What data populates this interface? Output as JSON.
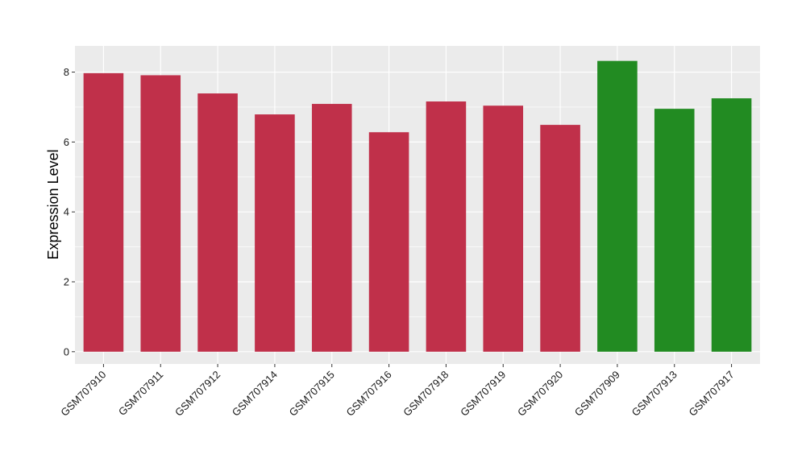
{
  "chart_data": {
    "type": "bar",
    "title": "",
    "xlabel": "",
    "ylabel": "Expression Level",
    "ylim": [
      -0.35,
      8.75
    ],
    "yticks": [
      0,
      2,
      4,
      6,
      8
    ],
    "grid": true,
    "categories": [
      "GSM707910",
      "GSM707911",
      "GSM707912",
      "GSM707914",
      "GSM707915",
      "GSM707916",
      "GSM707918",
      "GSM707919",
      "GSM707920",
      "GSM707909",
      "GSM707913",
      "GSM707917"
    ],
    "values": [
      7.97,
      7.91,
      7.39,
      6.79,
      7.09,
      6.28,
      7.16,
      7.04,
      6.49,
      8.32,
      6.95,
      7.25
    ],
    "groups": [
      "a",
      "a",
      "a",
      "a",
      "a",
      "a",
      "a",
      "a",
      "a",
      "b",
      "b",
      "b"
    ],
    "colors": {
      "a": "#c0304a",
      "b": "#228b22"
    },
    "panel_background": "#ebebeb",
    "grid_color": "#ffffff"
  }
}
